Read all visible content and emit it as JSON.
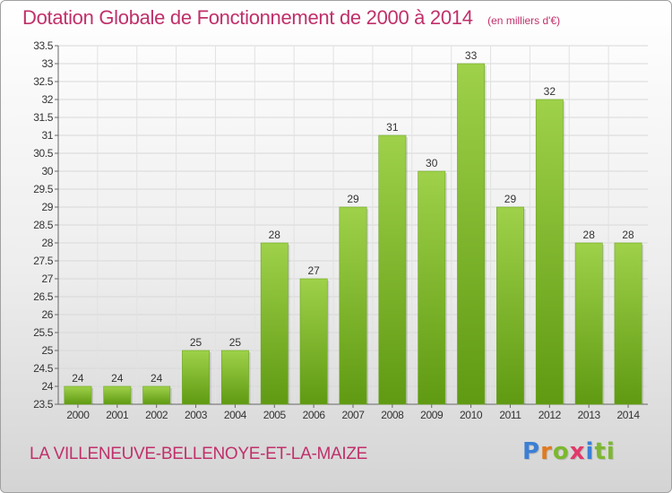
{
  "chart_data": {
    "type": "bar",
    "title": "Dotation Globale de Fonctionnement de 2000 à 2014",
    "subtitle": "(en milliers d'€)",
    "categories": [
      "2000",
      "2001",
      "2002",
      "2003",
      "2004",
      "2005",
      "2006",
      "2007",
      "2008",
      "2009",
      "2010",
      "2011",
      "2012",
      "2013",
      "2014"
    ],
    "values": [
      24,
      24,
      24,
      25,
      25,
      28,
      27,
      29,
      31,
      30,
      33,
      29,
      32,
      28,
      28
    ],
    "data_labels": [
      "24",
      "24",
      "24",
      "25",
      "25",
      "28",
      "27",
      "29",
      "31",
      "30",
      "33",
      "29",
      "32",
      "28",
      "28"
    ],
    "ylim": [
      23.5,
      33.5
    ],
    "yticks": [
      23.5,
      24,
      24.5,
      25,
      25.5,
      26,
      26.5,
      27,
      27.5,
      28,
      28.5,
      29,
      29.5,
      30,
      30.5,
      31,
      31.5,
      32,
      32.5,
      33,
      33.5
    ],
    "ytick_labels": [
      "23.5",
      "24",
      "24.5",
      "25",
      "25.5",
      "26",
      "26.5",
      "27",
      "27.5",
      "28",
      "28.5",
      "29",
      "29.5",
      "30",
      "30.5",
      "31",
      "31.5",
      "32",
      "32.5",
      "33",
      "33.5"
    ],
    "grid": true,
    "bar_color_top": "#9fd14a",
    "bar_color_bottom": "#5f9a12"
  },
  "footer": {
    "commune": "LA VILLENEUVE-BELLENOYE-ET-LA-MAIZE",
    "logo_letters": [
      "P",
      "r",
      "o",
      "x",
      "i",
      "ti"
    ]
  }
}
